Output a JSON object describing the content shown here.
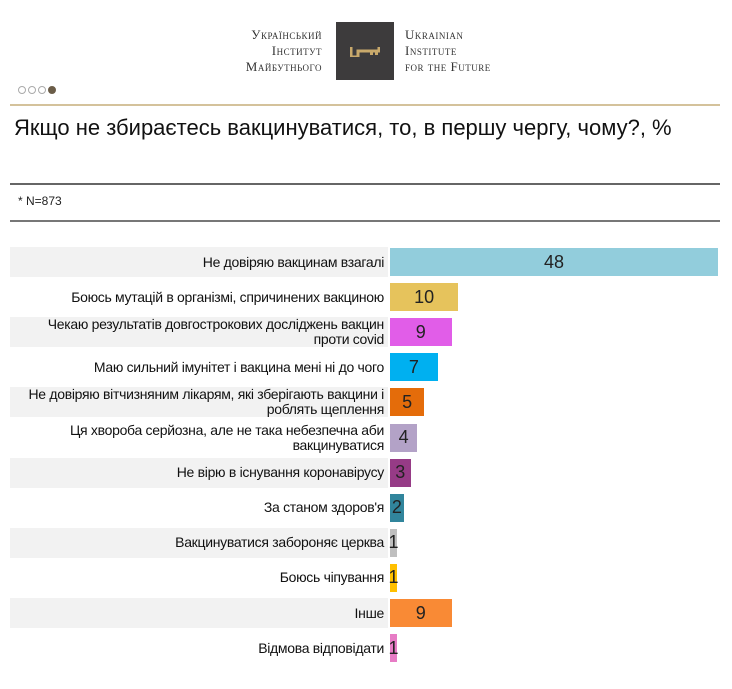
{
  "header": {
    "logo_ua": [
      "Український",
      "Інститут",
      "Майбутнього"
    ],
    "logo_en": [
      "Ukrainian",
      "Institute",
      "for the Future"
    ],
    "slide_dots": 4,
    "active_dot": 4
  },
  "title": "Якщо не збираєтесь вакцинуватися, то, в першу чергу, чому?, %",
  "note": "* N=873",
  "chart_data": {
    "type": "bar",
    "orientation": "horizontal",
    "title": "Якщо не збираєтесь вакцинуватися, то, в першу чергу, чому?, %",
    "categories": [
      "Не довіряю вакцинам взагалі",
      "Боюсь мутацій в організмі, спричинених вакциною",
      "Чекаю результатів довгострокових досліджень вакцин проти covid",
      "Маю сильний імунітет і вакцина мені ні до чого",
      "Не довіряю вітчизняним лікарям, які зберігають вакцини і роблять щеплення",
      "Ця хвороба серйозна, але не така небезпечна аби вакцинуватися",
      "Не вірю в існування коронавірусу",
      "За станом здоров'я",
      "Вакцинуватися забороняє церква",
      "Боюсь чіпування",
      "Інше",
      "Відмова відповідати"
    ],
    "values": [
      48,
      10,
      9,
      7,
      5,
      4,
      3,
      2,
      1,
      1,
      9,
      1
    ],
    "colors": [
      "#92cddc",
      "#e6c35c",
      "#e15de8",
      "#00b0f0",
      "#e46c0a",
      "#b3a2c7",
      "#963b86",
      "#31859c",
      "#bfbfbf",
      "#ffc000",
      "#f98a35",
      "#e77cc5"
    ],
    "xlim": [
      0,
      48
    ],
    "data_labels": true,
    "grid": false
  }
}
